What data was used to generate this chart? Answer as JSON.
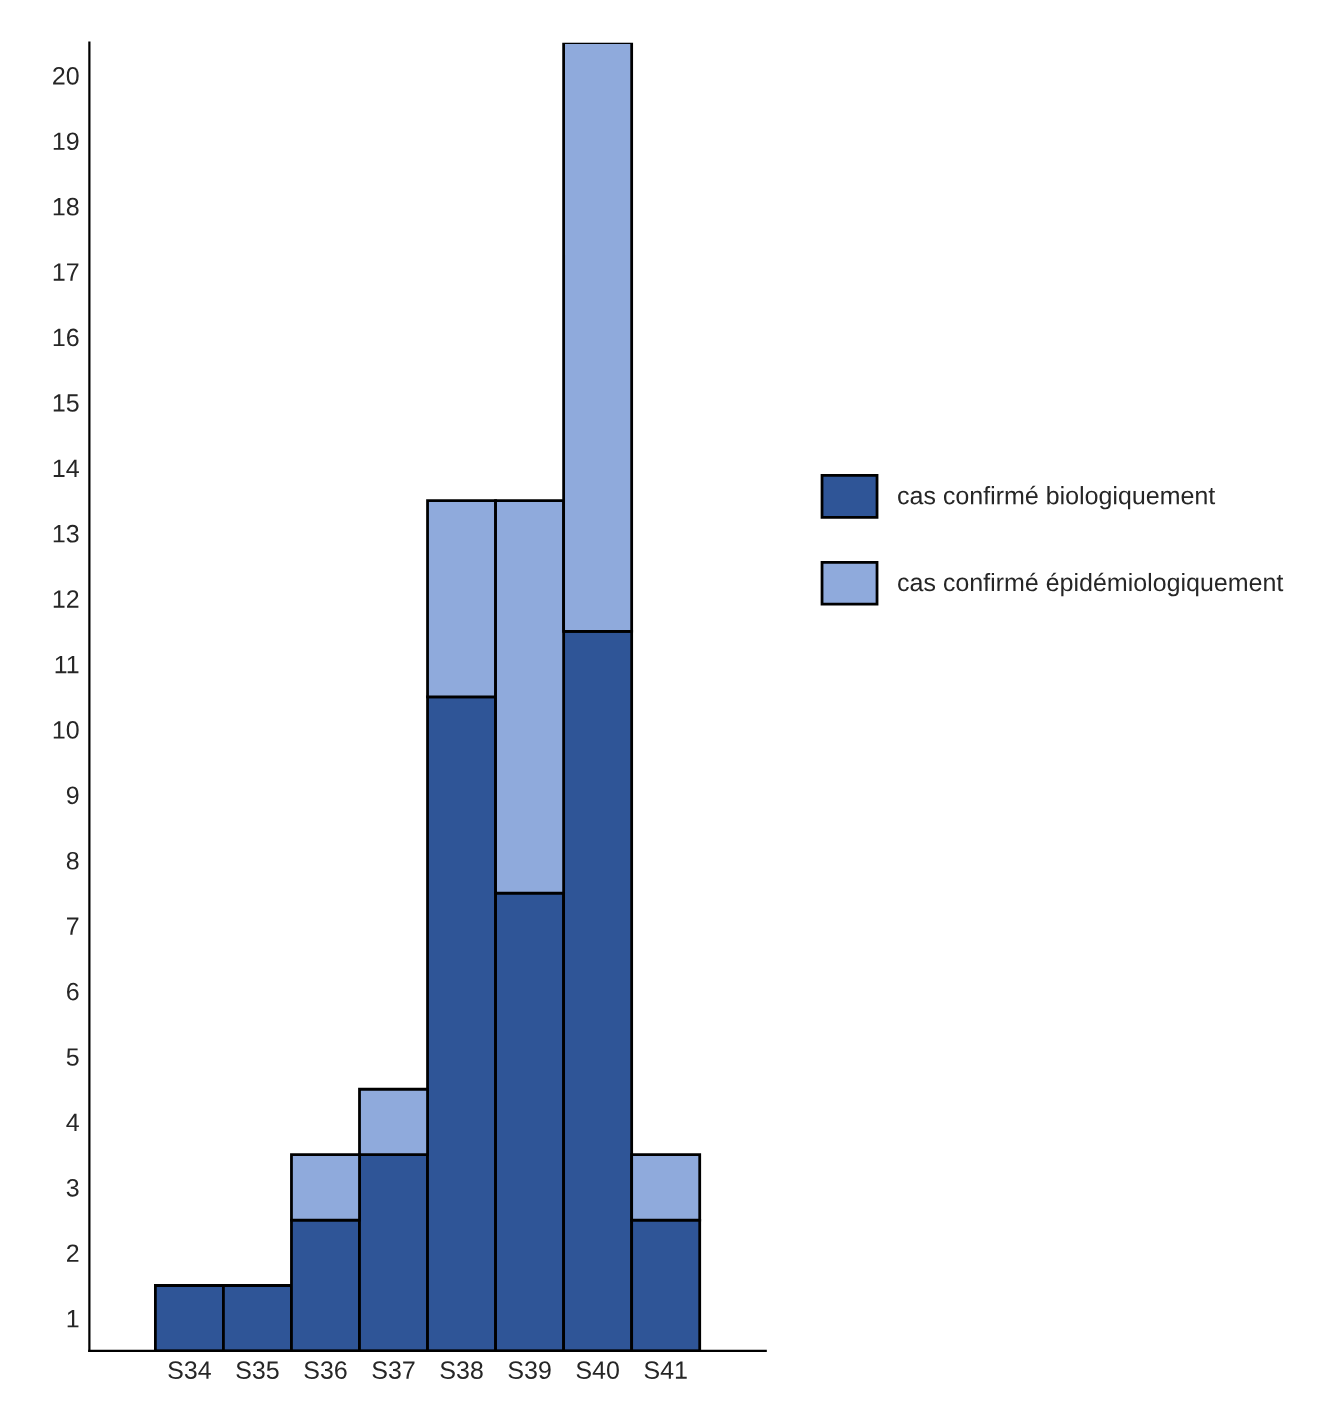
{
  "chart_data": {
    "type": "bar",
    "stacked": true,
    "categories": [
      "S34",
      "S35",
      "S36",
      "S37",
      "S38",
      "S39",
      "S40",
      "S41"
    ],
    "series": [
      {
        "name": "cas confirmé biologiquement",
        "color": "#2f5597",
        "values": [
          1,
          1,
          2,
          3,
          10,
          7,
          11,
          2
        ]
      },
      {
        "name": "cas confirmé épidémiologiquement",
        "color": "#8faadc",
        "values": [
          0,
          0,
          1,
          1,
          3,
          6,
          9,
          1
        ]
      }
    ],
    "ylim": [
      0,
      20
    ],
    "yticks": [
      {
        "value": 0.5,
        "label": "1"
      },
      {
        "value": 1.5,
        "label": "2"
      },
      {
        "value": 2.5,
        "label": "3"
      },
      {
        "value": 3.5,
        "label": "4"
      },
      {
        "value": 4.5,
        "label": "5"
      },
      {
        "value": 5.5,
        "label": "6"
      },
      {
        "value": 6.5,
        "label": "7"
      },
      {
        "value": 7.5,
        "label": "8"
      },
      {
        "value": 8.5,
        "label": "9"
      },
      {
        "value": 9.5,
        "label": "10"
      },
      {
        "value": 10.5,
        "label": "11"
      },
      {
        "value": 11.5,
        "label": "12"
      },
      {
        "value": 12.5,
        "label": "13"
      },
      {
        "value": 13.5,
        "label": "14"
      },
      {
        "value": 14.5,
        "label": "15"
      },
      {
        "value": 15.5,
        "label": "16"
      },
      {
        "value": 16.5,
        "label": "17"
      },
      {
        "value": 17.5,
        "label": "18"
      },
      {
        "value": 18.5,
        "label": "19"
      },
      {
        "value": 19.5,
        "label": "20"
      }
    ],
    "grid": false,
    "legend": "right"
  }
}
